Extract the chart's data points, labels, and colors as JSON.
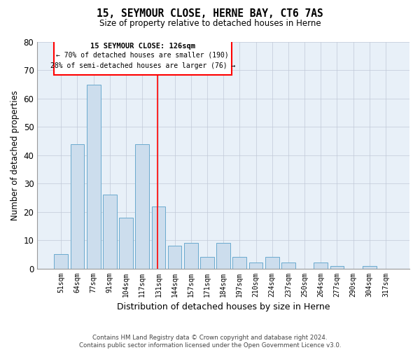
{
  "title": "15, SEYMOUR CLOSE, HERNE BAY, CT6 7AS",
  "subtitle": "Size of property relative to detached houses in Herne",
  "xlabel": "Distribution of detached houses by size in Herne",
  "ylabel": "Number of detached properties",
  "bar_color": "#ccdded",
  "bar_edge_color": "#6aaace",
  "background_color": "#ffffff",
  "axes_bg_color": "#e8f0f8",
  "grid_color": "#c0c8d8",
  "categories": [
    "51sqm",
    "64sqm",
    "77sqm",
    "91sqm",
    "104sqm",
    "117sqm",
    "131sqm",
    "144sqm",
    "157sqm",
    "171sqm",
    "184sqm",
    "197sqm",
    "210sqm",
    "224sqm",
    "237sqm",
    "250sqm",
    "264sqm",
    "277sqm",
    "290sqm",
    "304sqm",
    "317sqm"
  ],
  "values": [
    5,
    44,
    65,
    26,
    18,
    44,
    22,
    8,
    9,
    4,
    9,
    4,
    2,
    4,
    2,
    0,
    2,
    1,
    0,
    1,
    0
  ],
  "ylim": [
    0,
    80
  ],
  "yticks": [
    0,
    10,
    20,
    30,
    40,
    50,
    60,
    70,
    80
  ],
  "property_line_x": 5.92,
  "annotation_title": "15 SEYMOUR CLOSE: 126sqm",
  "annotation_line1": "← 70% of detached houses are smaller (190)",
  "annotation_line2": "28% of semi-detached houses are larger (76) →",
  "footer_line1": "Contains HM Land Registry data © Crown copyright and database right 2024.",
  "footer_line2": "Contains public sector information licensed under the Open Government Licence v3.0."
}
